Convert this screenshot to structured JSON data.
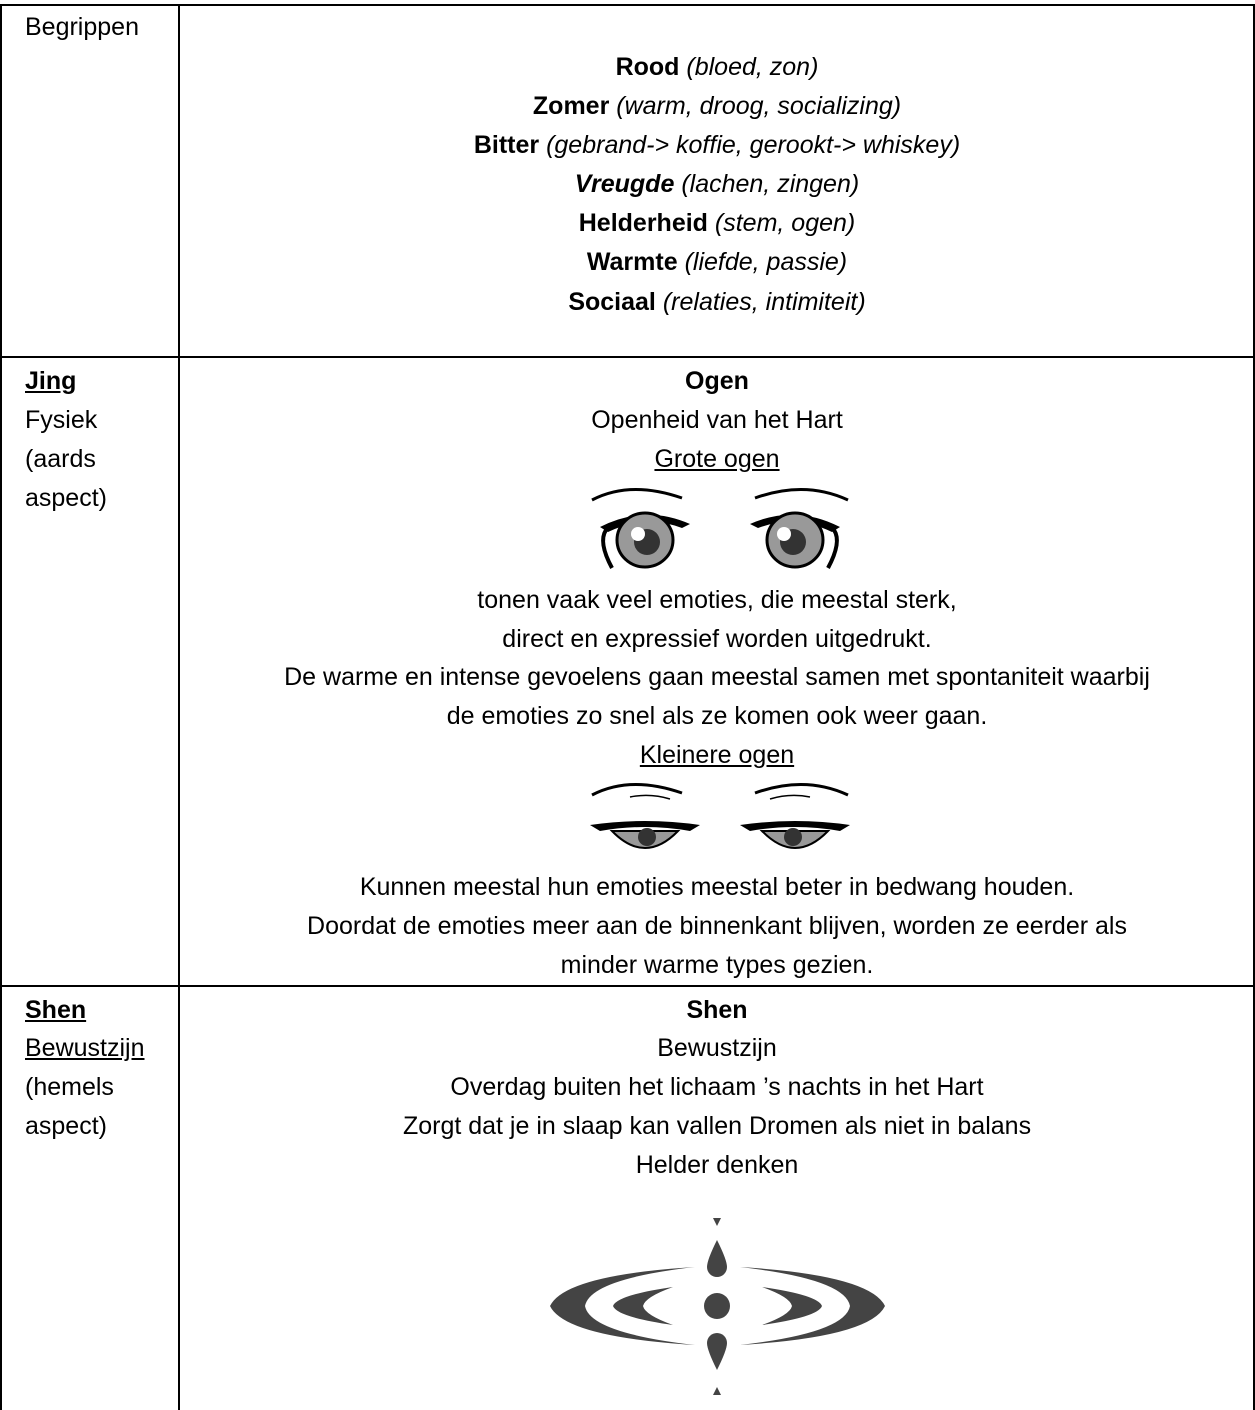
{
  "table": {
    "rows": [
      {
        "label": [
          "Begrippen"
        ],
        "content": [
          {
            "term": "Rood",
            "note": "(bloed, zon)"
          },
          {
            "term": "Zomer",
            "note": "(warm, droog, socializing)"
          },
          {
            "term": "Bitter",
            "note": "(gebrand-> koffie, gerookt-> whiskey)"
          },
          {
            "term": "Vreugde",
            "note": "(lachen, zingen)"
          },
          {
            "term": "Helderheid",
            "note": "(stem, ogen)"
          },
          {
            "term": "Warmte",
            "note": "(liefde, passie)"
          },
          {
            "term": "Sociaal",
            "note": "(relaties, intimiteit)"
          }
        ]
      },
      {
        "label": [
          "Jing",
          "Fysiek",
          "(aards",
          "aspect)"
        ],
        "heading": "Ogen",
        "subheading": "Openheid van het Hart",
        "groups": [
          {
            "title": "Grote ogen",
            "text": [
              "tonen vaak veel emoties, die meestal sterk,",
              "direct en expressief worden uitgedrukt.",
              "De warme en intense gevoelens gaan meestal samen met spontaniteit waarbij",
              "de emoties zo snel als ze komen ook weer gaan."
            ]
          },
          {
            "title": "Kleinere ogen",
            "text": [
              "Kunnen meestal hun emoties meestal beter in bedwang houden.",
              "Doordat de emoties meer aan de binnenkant blijven, worden ze eerder als",
              "minder warme types gezien."
            ]
          }
        ]
      },
      {
        "label": [
          "Shen",
          "Bewustzijn",
          "(hemels",
          "aspect)"
        ],
        "heading": "Shen",
        "text": [
          "Bewustzijn",
          "Overdag buiten het lichaam ’s nachts in het Hart",
          "Zorgt dat je in slaap kan vallen Dromen als niet in balans",
          "Helder denken"
        ]
      }
    ]
  }
}
